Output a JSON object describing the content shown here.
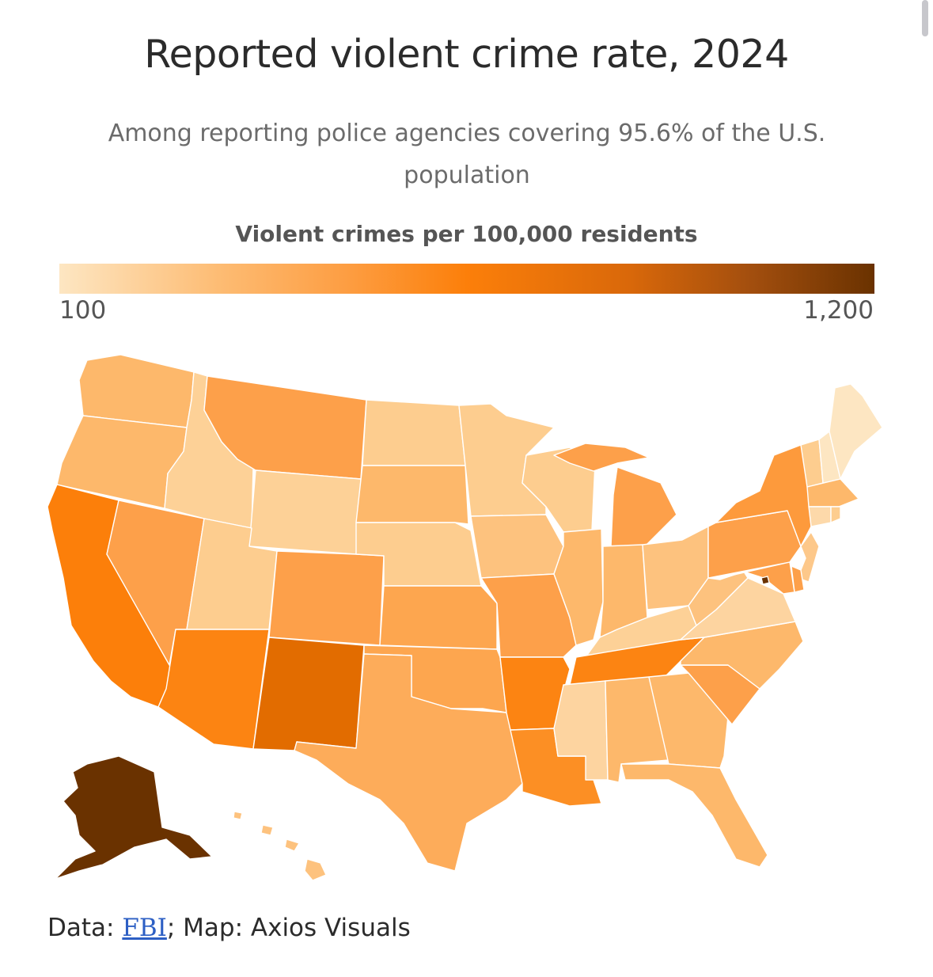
{
  "title": "Reported violent crime rate, 2024",
  "subtitle": "Among reporting police agencies covering 95.6% of the U.S. population",
  "legend": {
    "title": "Violent crimes per 100,000 residents",
    "min_label": "100",
    "max_label": "1,200",
    "colors": [
      "#fde6c2",
      "#fdbb72",
      "#fd9e43",
      "#fc7f0a",
      "#d9680a",
      "#a24e0e",
      "#6a3200"
    ]
  },
  "source": {
    "prefix": "Data: ",
    "link": "FBI",
    "suffix": "; Map: Axios Visuals"
  },
  "states": {
    "WA": "#fdb86b",
    "OR": "#fdb86b",
    "CA": "#fc7f0a",
    "NV": "#fda04a",
    "ID": "#fdd197",
    "MT": "#fda04a",
    "WY": "#fdd197",
    "UT": "#fdcd8f",
    "AZ": "#fc8412",
    "CO": "#fda04a",
    "NM": "#e26c00",
    "ND": "#fdcd8f",
    "SD": "#fdb86b",
    "NE": "#fdcd8f",
    "KS": "#fda64f",
    "OK": "#fda64f",
    "TX": "#fdac5a",
    "MN": "#fdcd8f",
    "IA": "#fdc27e",
    "MO": "#fda04a",
    "AR": "#fc8412",
    "LA": "#fc8f24",
    "WI": "#fdcd8f",
    "IL": "#fdb86b",
    "MI": "#fda04a",
    "IN": "#fdb86b",
    "OH": "#fdc27e",
    "KY": "#fdd197",
    "TN": "#fc8412",
    "MS": "#fdd4a0",
    "AL": "#fdb86b",
    "GA": "#fdb86b",
    "FL": "#fdb86b",
    "SC": "#fda04a",
    "NC": "#fdb86b",
    "VA": "#fdd4a0",
    "WV": "#fdc27e",
    "PA": "#fda04a",
    "NY": "#fd9a3c",
    "NJ": "#fdc88a",
    "DE": "#fda04a",
    "MD": "#fda04a",
    "DC": "#6a3200",
    "VT": "#fdcd8f",
    "NH": "#fde6c2",
    "ME": "#fde6c2",
    "MA": "#fdb86b",
    "CT": "#fdd9aa",
    "RI": "#fdcd8f",
    "AK": "#6a3200",
    "HI": "#fdc27e"
  }
}
